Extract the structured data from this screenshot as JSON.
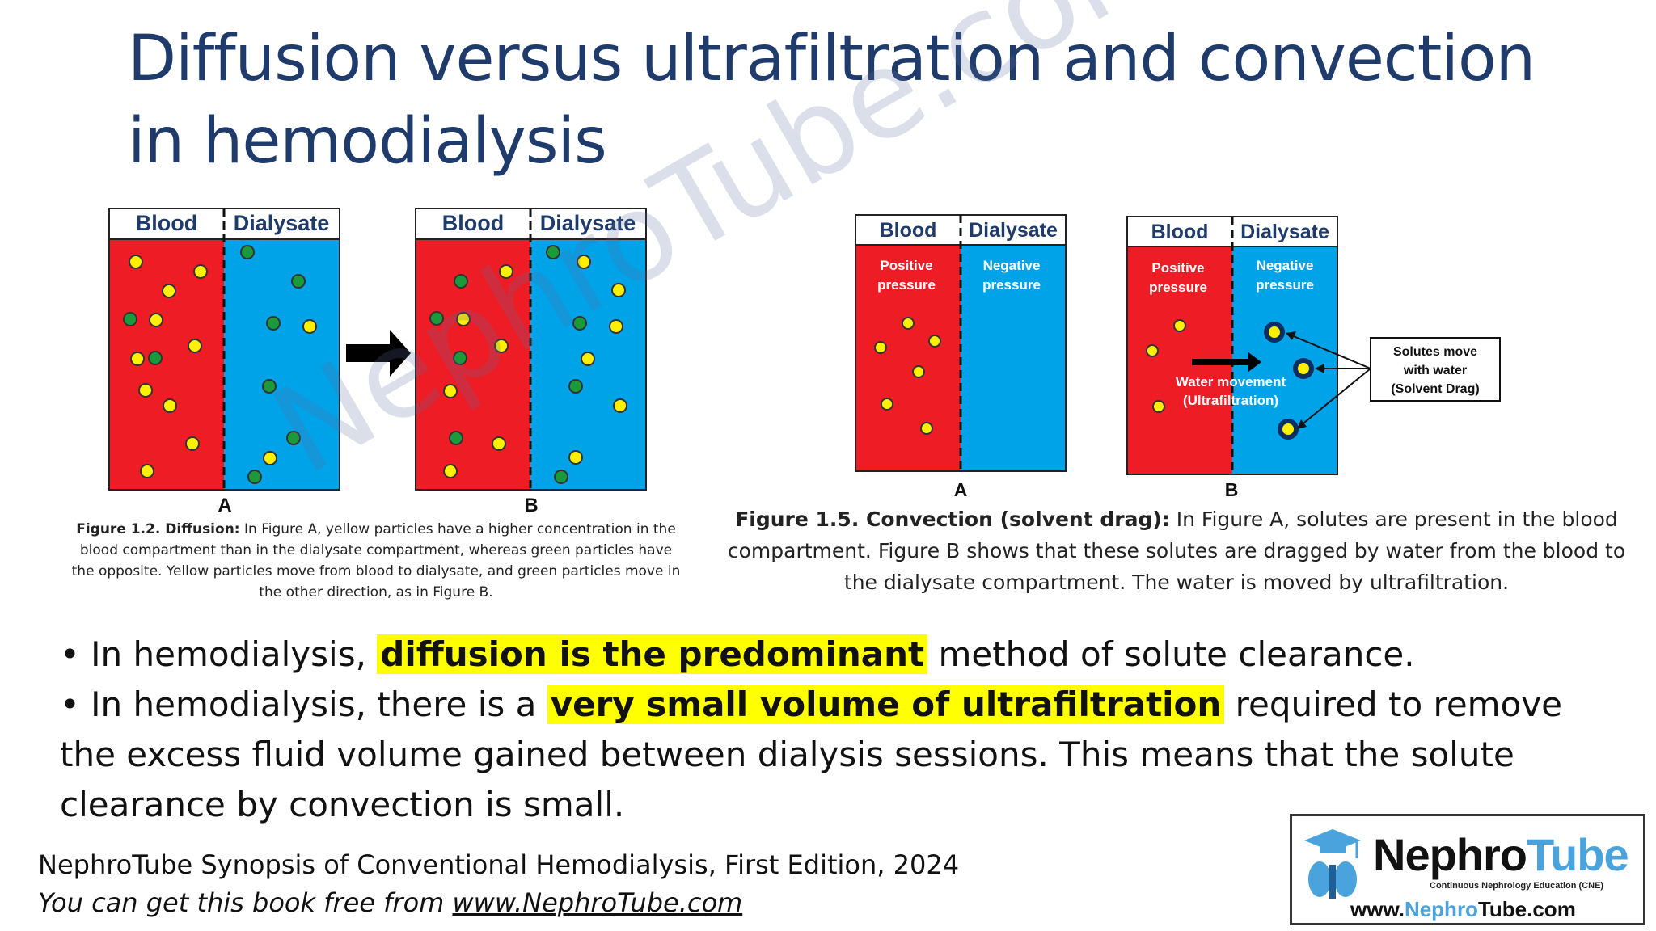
{
  "title": "Diffusion versus ultrafiltration and convection in hemodialysis",
  "figure_1_2": {
    "panels": [
      {
        "letter": "A",
        "col_blood": "Blood",
        "col_dialysate": "Dialysate"
      },
      {
        "letter": "B",
        "col_blood": "Blood",
        "col_dialysate": "Dialysate"
      }
    ],
    "caption_bold": "Figure 1.2. Diffusion:",
    "caption_text": " In Figure A, yellow particles have a higher concentration in the blood compartment than in the dialysate compartment, whereas green particles have the opposite. Yellow particles move from blood to dialysate, and green particles move in the other direction, as in Figure B."
  },
  "figure_1_5": {
    "panels": [
      {
        "letter": "A",
        "col_blood": "Blood",
        "col_dialysate": "Dialysate",
        "positive_pressure": "Positive pressure",
        "negative_pressure": "Negative pressure"
      },
      {
        "letter": "B",
        "col_blood": "Blood",
        "col_dialysate": "Dialysate",
        "positive_pressure": "Positive pressure",
        "negative_pressure": "Negative pressure"
      }
    ],
    "water_label": "Water movement",
    "ultrafiltration_label": "(Ultrafiltration)",
    "callout": [
      "Solutes move",
      "with water",
      "(Solvent Drag)"
    ],
    "caption_bold": "Figure 1.5. Convection (solvent drag):",
    "caption_text": " In Figure A, solutes are present in the blood compartment. Figure B shows that these solutes are dragged by water from the blood to the dialysate compartment. The water is moved by ultrafiltration."
  },
  "bullets": [
    {
      "pre": "• In hemodialysis, ",
      "highlight": "diffusion is the predominant",
      "post": " method of solute clearance."
    },
    {
      "pre": "• In hemodialysis, there is a ",
      "highlight": "very small volume of ultrafiltration",
      "post": " required to remove the excess fluid volume gained between dialysis sessions. This means that the solute clearance by convection is small."
    }
  ],
  "footer": {
    "line1": "NephroTube Synopsis of Conventional Hemodialysis, First Edition, 2024",
    "line2_pre": "You can get this book free from ",
    "line2_link": "www.NephroTube.com"
  },
  "logo": {
    "name_a": "Nephro",
    "name_b": "Tube",
    "tagline": "Continuous Nephrology Education (CNE)",
    "url_a": "www.",
    "url_b": "Nephro",
    "url_c": "Tube",
    "url_d": ".com"
  },
  "watermark": "NephroTube.com",
  "colors": {
    "title": "#1f3b6b",
    "blood": "#ee1c24",
    "dialysate": "#00a2e8",
    "yellow_particle": "#ffef00",
    "green_particle": "#1a9a3a",
    "highlight": "#ffff00",
    "logo_blue": "#4aa3dc"
  }
}
